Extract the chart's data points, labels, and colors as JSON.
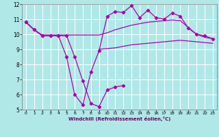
{
  "background_color": "#b0e8e8",
  "grid_color": "#ffffff",
  "line_color": "#aa00aa",
  "xlabel": "Windchill (Refroidissement éolien,°C)",
  "xlim": [
    -0.5,
    23.5
  ],
  "ylim": [
    5,
    12
  ],
  "xticks": [
    0,
    1,
    2,
    3,
    4,
    5,
    6,
    7,
    8,
    9,
    10,
    11,
    12,
    13,
    14,
    15,
    16,
    17,
    18,
    19,
    20,
    21,
    22,
    23
  ],
  "yticks": [
    5,
    6,
    7,
    8,
    9,
    10,
    11,
    12
  ],
  "line_spiky_x": [
    0,
    1,
    2,
    3,
    4,
    5,
    6,
    7,
    8,
    9,
    10,
    11,
    12,
    13,
    14,
    15,
    16,
    17,
    18,
    19,
    20,
    21,
    22,
    23
  ],
  "line_spiky_y": [
    10.8,
    10.3,
    9.9,
    9.9,
    9.9,
    8.5,
    6.0,
    5.3,
    7.5,
    8.9,
    11.2,
    11.5,
    11.45,
    11.9,
    11.1,
    11.6,
    11.1,
    11.0,
    11.4,
    11.2,
    10.4,
    10.0,
    9.9,
    9.7
  ],
  "line_upper_x": [
    0,
    1,
    2,
    3,
    4,
    5,
    6,
    7,
    8,
    9,
    10,
    11,
    12,
    13,
    14,
    15,
    16,
    17,
    18,
    19,
    20,
    21,
    22,
    23
  ],
  "line_upper_y": [
    10.8,
    10.3,
    9.95,
    9.95,
    9.95,
    9.95,
    9.95,
    9.95,
    9.95,
    9.95,
    10.1,
    10.3,
    10.45,
    10.6,
    10.7,
    10.8,
    10.85,
    10.9,
    10.95,
    10.9,
    10.45,
    10.0,
    9.8,
    9.7
  ],
  "line_lower_x": [
    9,
    10,
    11,
    12,
    13,
    14,
    15,
    16,
    17,
    18,
    19,
    20,
    21,
    22,
    23
  ],
  "line_lower_y": [
    9.0,
    9.05,
    9.1,
    9.2,
    9.3,
    9.35,
    9.4,
    9.45,
    9.5,
    9.55,
    9.6,
    9.55,
    9.5,
    9.45,
    9.4
  ],
  "line_windchill_x": [
    0,
    1,
    2,
    3,
    4,
    5,
    6,
    7,
    8,
    9,
    10,
    11,
    12
  ],
  "line_windchill_y": [
    10.8,
    10.3,
    9.9,
    9.9,
    9.9,
    9.9,
    8.5,
    6.9,
    5.4,
    5.2,
    6.3,
    6.5,
    6.6
  ]
}
